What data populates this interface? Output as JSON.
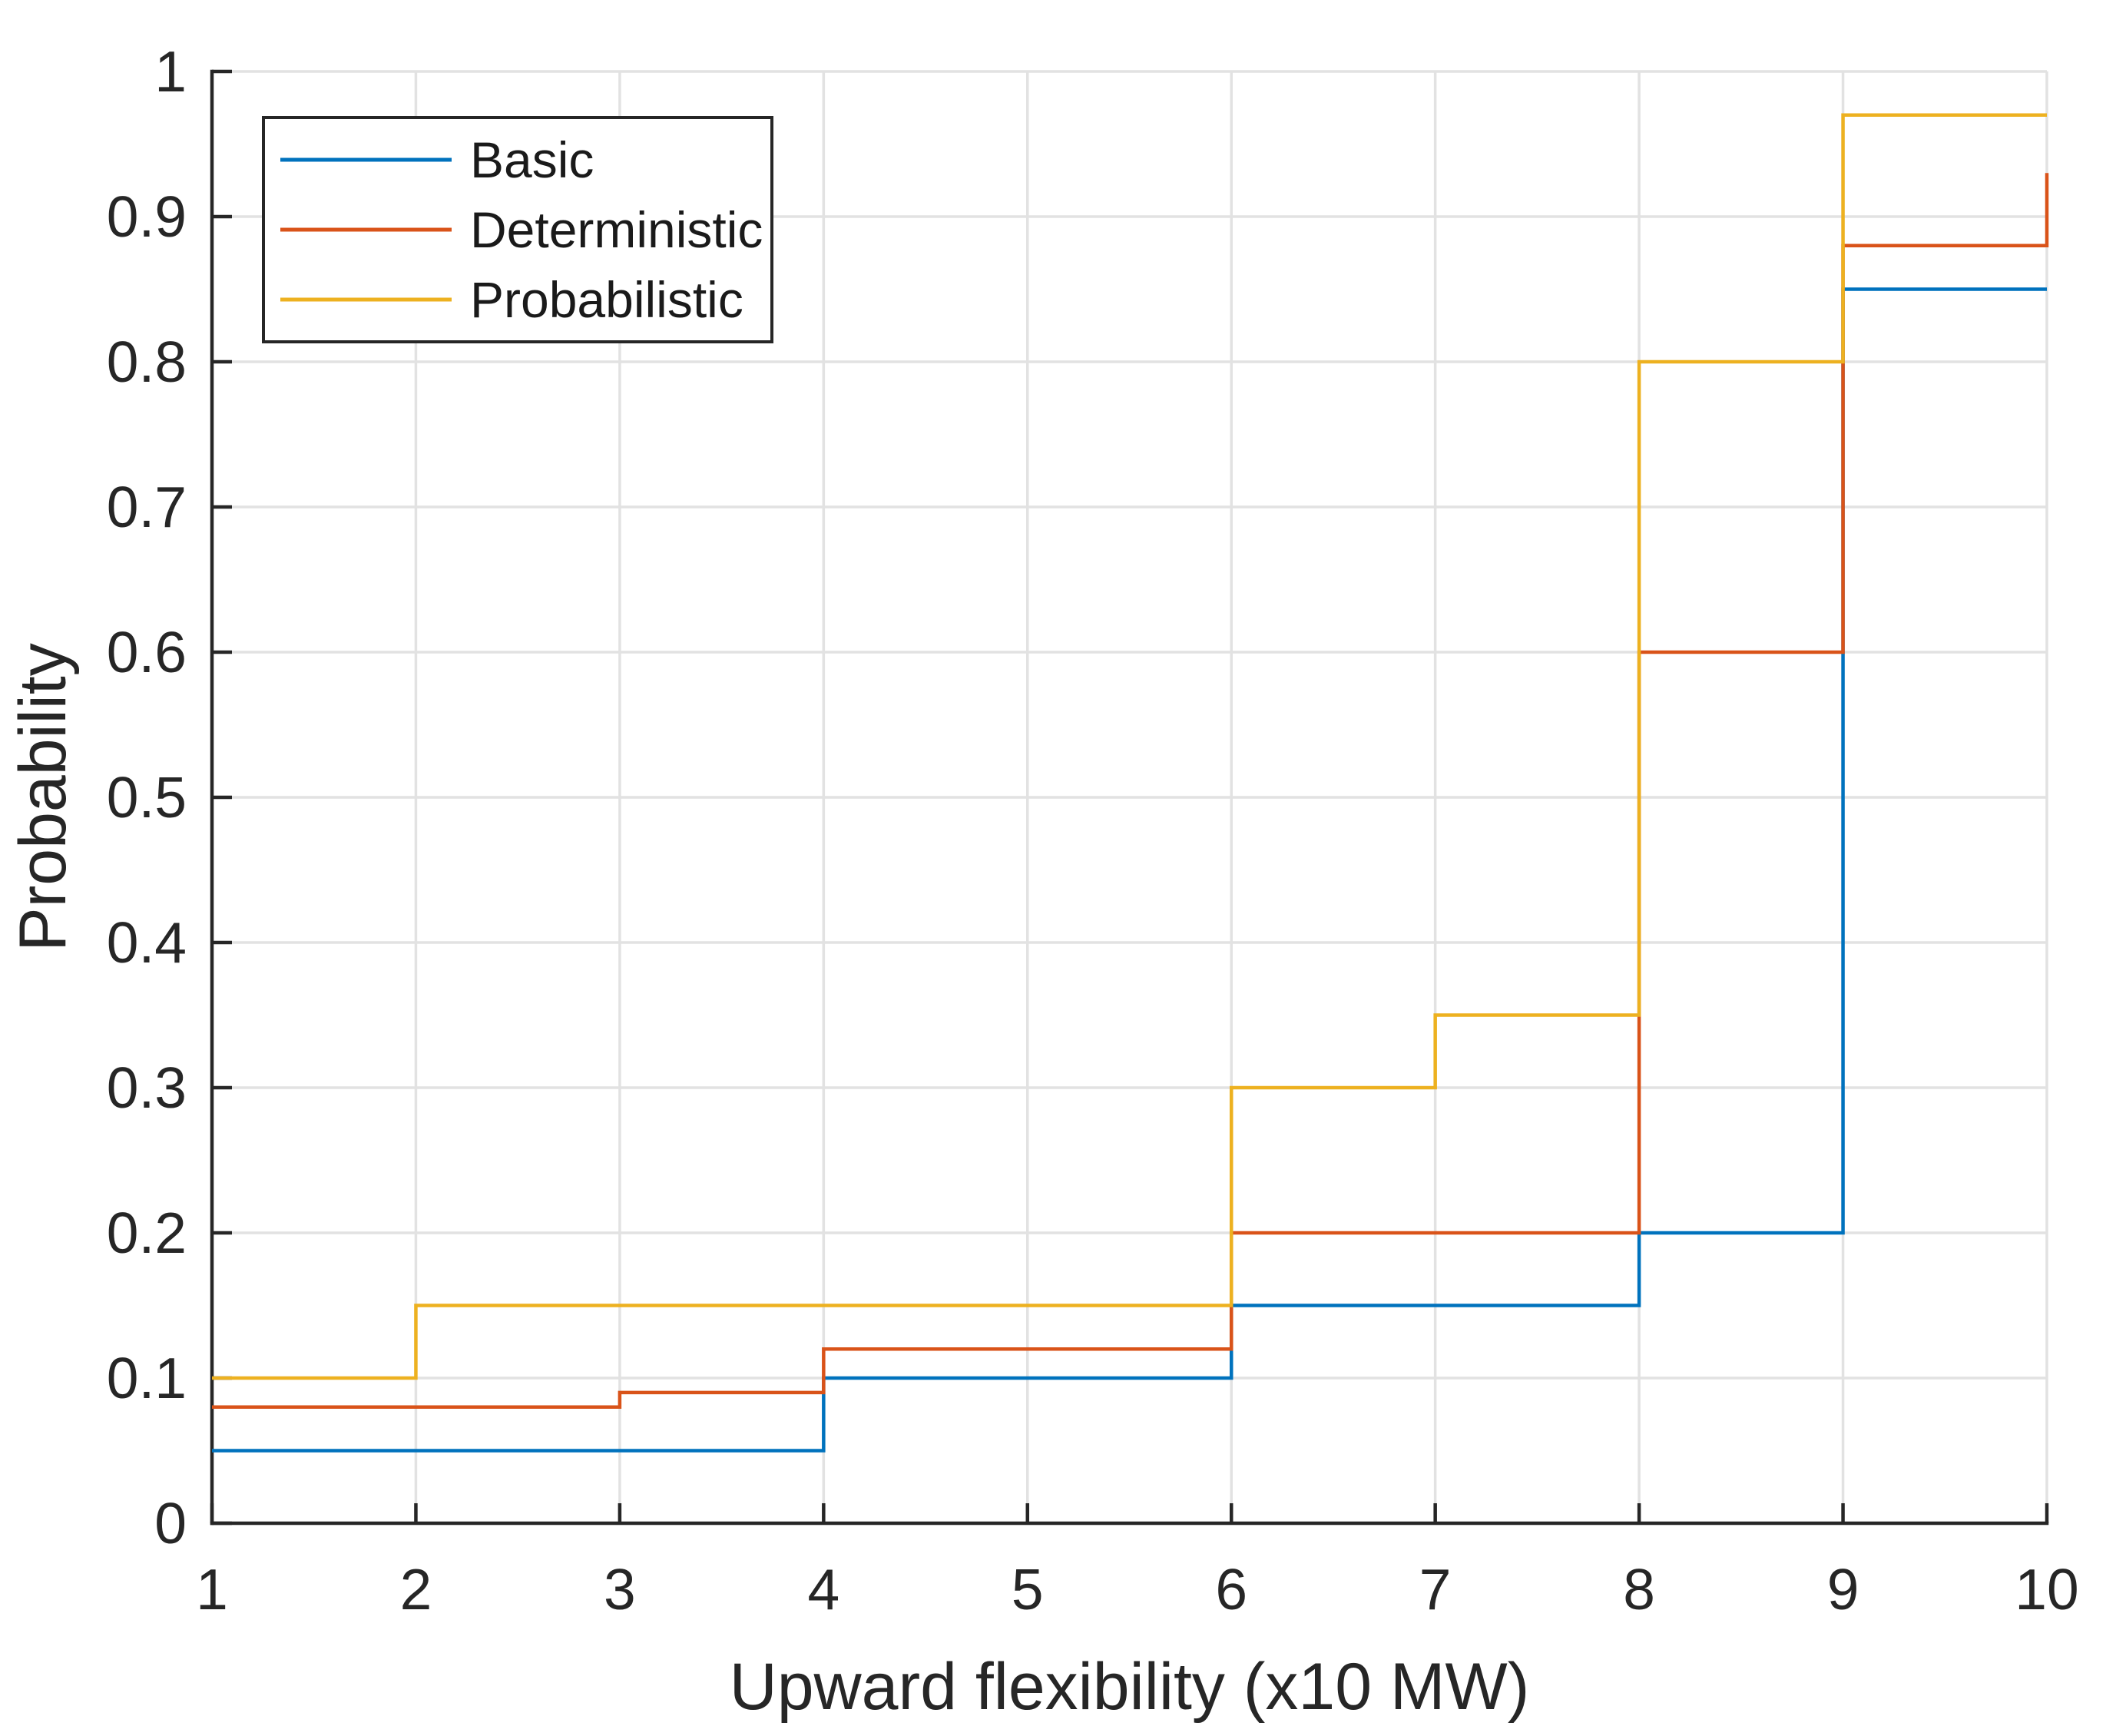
{
  "chart_data": {
    "type": "line",
    "subtype": "stairs",
    "title": "",
    "xlabel": "Upward flexibility (x10 MW)",
    "ylabel": "Probability",
    "x": [
      1,
      2,
      3,
      4,
      5,
      6,
      7,
      8,
      9,
      10
    ],
    "series": [
      {
        "name": "Basic",
        "color": "#0072BD",
        "values": [
          0.05,
          0.05,
          0.05,
          0.1,
          0.1,
          0.15,
          0.15,
          0.2,
          0.85,
          0.85
        ]
      },
      {
        "name": "Deterministic",
        "color": "#D95319",
        "values": [
          0.08,
          0.08,
          0.09,
          0.12,
          0.12,
          0.2,
          0.2,
          0.6,
          0.88,
          0.93
        ]
      },
      {
        "name": "Probabilistic",
        "color": "#EDB120",
        "values": [
          0.1,
          0.15,
          0.15,
          0.15,
          0.15,
          0.3,
          0.35,
          0.8,
          0.97,
          0.97
        ]
      }
    ],
    "xlim": [
      1,
      10
    ],
    "ylim": [
      0,
      1
    ],
    "xticks": [
      1,
      2,
      3,
      4,
      5,
      6,
      7,
      8,
      9,
      10
    ],
    "xticklabels": [
      "1",
      "2",
      "3",
      "4",
      "5",
      "6",
      "7",
      "8",
      "9",
      "10"
    ],
    "yticks": [
      0,
      0.1,
      0.2,
      0.3,
      0.4,
      0.5,
      0.6,
      0.7,
      0.8,
      0.9,
      1
    ],
    "yticklabels": [
      "0",
      "0.1",
      "0.2",
      "0.3",
      "0.4",
      "0.5",
      "0.6",
      "0.7",
      "0.8",
      "0.9",
      "1"
    ],
    "grid": true,
    "legend_position": "top-left",
    "legend_labels": [
      "Basic",
      "Deterministic",
      "Probabilistic"
    ]
  },
  "colors": {
    "grid": "#E2E2E2",
    "axis": "#262626",
    "text": "#262626",
    "legend_text": "#1a1a1a",
    "background": "#ffffff"
  }
}
